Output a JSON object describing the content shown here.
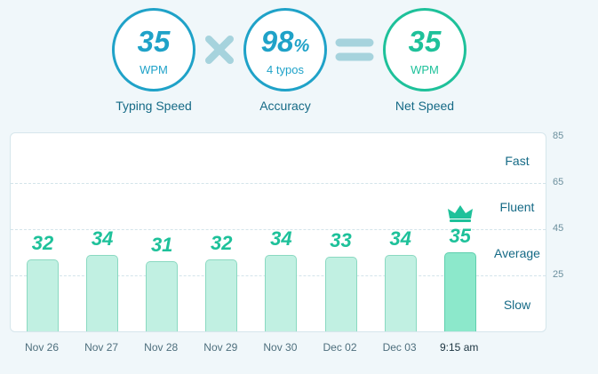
{
  "summary": {
    "typing_speed": {
      "value": "35",
      "unit": "WPM",
      "caption": "Typing Speed"
    },
    "accuracy": {
      "value": "98",
      "unit": "%",
      "sub": "4 typos",
      "caption": "Accuracy"
    },
    "net_speed": {
      "value": "35",
      "unit": "WPM",
      "caption": "Net Speed"
    },
    "operators": [
      "multiply-icon",
      "equals-icon"
    ]
  },
  "zones": [
    "Fast",
    "Fluent",
    "Average",
    "Slow"
  ],
  "colors": {
    "accent_blue": "#1fa2c8",
    "accent_green": "#1ec19a",
    "bar_fill": "#c1f0e2",
    "bar_latest_fill": "#8ce8cb",
    "operator_color": "#a6d3dd",
    "text_dark": "#156a86"
  },
  "chart_data": {
    "type": "bar",
    "categories": [
      "Nov 26",
      "Nov 27",
      "Nov 28",
      "Nov 29",
      "Nov 30",
      "Dec 02",
      "Dec 03",
      "9:15 am"
    ],
    "values": [
      32,
      34,
      31,
      32,
      34,
      33,
      34,
      35
    ],
    "data_labels": [
      "32",
      "34",
      "31",
      "32",
      "34",
      "33",
      "34",
      "35"
    ],
    "y_ticks": [
      "85",
      "65",
      "45",
      "25"
    ],
    "ylim": [
      0,
      85
    ],
    "highlight_index": 7,
    "highlight_icon": "crown-icon",
    "grid": true
  }
}
